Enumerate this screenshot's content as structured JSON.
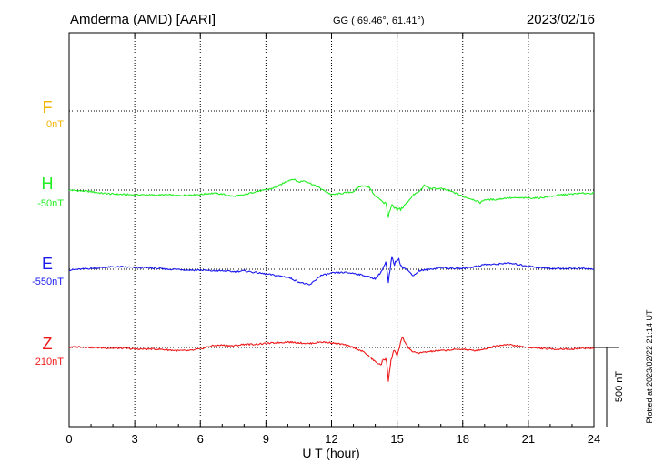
{
  "header": {
    "station": "Amderma (AMD)  [AARI]",
    "coords": "GG ( 69.46°,  61.41°)",
    "date": "2023/02/16"
  },
  "footer_note": "Plotted at 2023/02/22 21:14 UT",
  "chart_data": {
    "type": "line",
    "title": "Amderma (AMD)  [AARI]",
    "xlabel": "U T (hour)",
    "xlim": [
      0,
      24
    ],
    "xticks": [
      0,
      3,
      6,
      9,
      12,
      15,
      18,
      21,
      24
    ],
    "x_tick_labels": [
      "0",
      "3",
      "6",
      "9",
      "12",
      "15",
      "18",
      "21",
      "24"
    ],
    "grid": true,
    "scale_bar": {
      "label": "500 nT",
      "value_nT": 500
    },
    "series": [
      {
        "name": "F",
        "baseline_label": "0nT",
        "baseline_nT": 0,
        "color": "#f0b400",
        "x": [],
        "y": []
      },
      {
        "name": "H",
        "baseline_label": "-50nT",
        "baseline_nT": -50,
        "color": "#22ee22",
        "x": [
          0,
          0.5,
          1,
          1.5,
          2,
          2.5,
          3,
          3.5,
          4,
          4.5,
          5,
          5.5,
          6,
          6.5,
          7,
          7.5,
          8,
          8.5,
          9,
          9.5,
          10,
          10.25,
          10.5,
          10.75,
          11,
          11.5,
          12,
          12.5,
          13,
          13.25,
          13.5,
          13.75,
          14,
          14.25,
          14.5,
          14.6,
          14.75,
          14.9,
          15,
          15.25,
          15.5,
          15.75,
          16,
          16.25,
          16.5,
          17,
          17.5,
          18,
          18.5,
          18.8,
          19,
          19.5,
          20,
          20.5,
          21,
          21.5,
          22,
          22.5,
          23,
          23.5,
          24
        ],
        "y": [
          -50,
          -55,
          -60,
          -70,
          -75,
          -78,
          -80,
          -80,
          -82,
          -80,
          -85,
          -80,
          -78,
          -70,
          -75,
          -90,
          -80,
          -60,
          -50,
          -30,
          10,
          20,
          0,
          10,
          -5,
          -40,
          -80,
          -70,
          -60,
          -30,
          -20,
          -35,
          -90,
          -110,
          -140,
          -220,
          -150,
          -170,
          -180,
          -160,
          -120,
          -80,
          -60,
          -20,
          -40,
          -40,
          -60,
          -90,
          -110,
          -130,
          -110,
          -110,
          -100,
          -100,
          -100,
          -100,
          -90,
          -80,
          -75,
          -70,
          -70
        ]
      },
      {
        "name": "E",
        "baseline_label": "-550nT",
        "baseline_nT": -550,
        "color": "#1a1aee",
        "x": [
          0,
          0.5,
          1,
          1.5,
          2,
          2.5,
          3,
          3.5,
          4,
          4.5,
          5,
          5.5,
          6,
          6.5,
          7,
          7.5,
          8,
          8.5,
          9,
          9.5,
          10,
          10.5,
          11,
          11.25,
          11.5,
          12,
          12.5,
          13,
          13.5,
          14,
          14.25,
          14.5,
          14.6,
          14.75,
          14.9,
          15,
          15.25,
          15.5,
          15.75,
          16,
          16.5,
          17,
          17.5,
          18,
          18.5,
          19,
          19.5,
          20,
          20.5,
          21,
          21.5,
          22,
          22.5,
          23,
          23.5,
          24
        ],
        "y": [
          -555,
          -550,
          -545,
          -540,
          -535,
          -535,
          -540,
          -540,
          -545,
          -550,
          -550,
          -555,
          -555,
          -560,
          -560,
          -565,
          -560,
          -570,
          -580,
          -590,
          -600,
          -630,
          -650,
          -620,
          -590,
          -575,
          -570,
          -575,
          -590,
          -610,
          -570,
          -510,
          -640,
          -480,
          -520,
          -480,
          -530,
          -560,
          -590,
          -560,
          -550,
          -540,
          -545,
          -545,
          -535,
          -520,
          -520,
          -510,
          -520,
          -530,
          -540,
          -545,
          -545,
          -545,
          -545,
          -550
        ]
      },
      {
        "name": "Z",
        "baseline_label": "210nT",
        "baseline_nT": 210,
        "color": "#ee1a1a",
        "x": [
          0,
          0.5,
          1,
          1.5,
          2,
          2.5,
          3,
          3.5,
          4,
          4.5,
          5,
          5.5,
          6,
          6.5,
          7,
          7.5,
          8,
          8.5,
          9,
          9.5,
          10,
          10.5,
          11,
          11.5,
          12,
          12.5,
          13,
          13.5,
          14,
          14.25,
          14.5,
          14.6,
          14.75,
          14.9,
          15,
          15.25,
          15.5,
          15.75,
          16,
          16.5,
          17,
          17.5,
          18,
          18.5,
          19,
          19.5,
          20,
          20.5,
          21,
          21.5,
          22,
          22.5,
          23,
          23.5,
          24
        ],
        "y": [
          210,
          215,
          210,
          208,
          205,
          205,
          200,
          200,
          200,
          195,
          190,
          190,
          200,
          220,
          225,
          220,
          230,
          230,
          235,
          240,
          245,
          240,
          235,
          245,
          240,
          230,
          210,
          180,
          120,
          100,
          150,
          10,
          150,
          200,
          160,
          270,
          210,
          180,
          175,
          185,
          190,
          195,
          200,
          190,
          200,
          220,
          230,
          220,
          210,
          205,
          200,
          200,
          200,
          205,
          205
        ]
      }
    ]
  }
}
